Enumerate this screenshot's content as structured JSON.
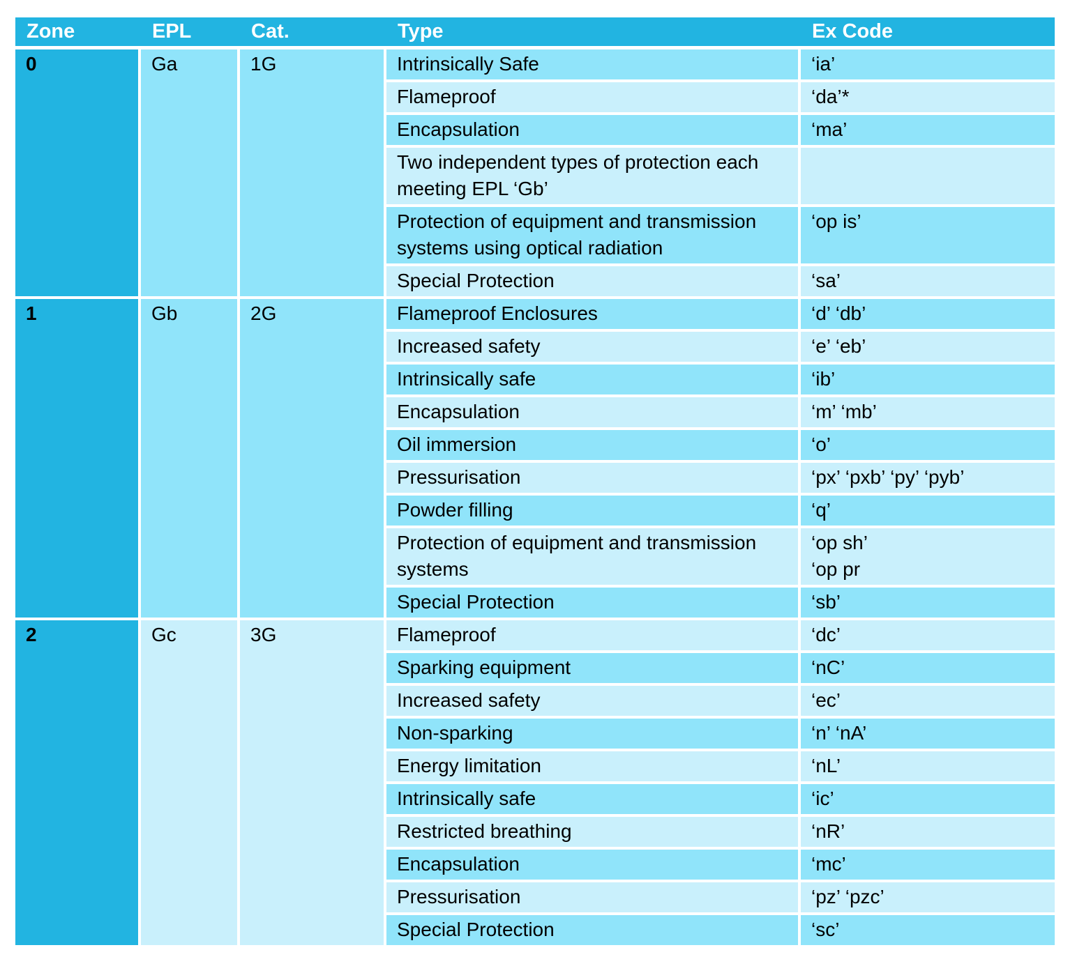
{
  "colors": {
    "header_bg": "#22b4e1",
    "header_text": "#ffffff",
    "row_medium": "#90e4fa",
    "row_light": "#c9f0fc",
    "grid": "#ffffff",
    "body_text": "#000000"
  },
  "table": {
    "headers": [
      "Zone",
      "EPL",
      "Cat.",
      "Type",
      "Ex Code"
    ],
    "groups": [
      {
        "zone": "0",
        "epl": "Ga",
        "cat": "1G",
        "group_shade": "medium",
        "rows": [
          {
            "type": "Intrinsically Safe",
            "code_lines": [
              "‘ia’"
            ],
            "shade": "medium"
          },
          {
            "type": "Flameproof",
            "code_lines": [
              "‘da’*"
            ],
            "shade": "light"
          },
          {
            "type": "Encapsulation",
            "code_lines": [
              "‘ma’"
            ],
            "shade": "medium"
          },
          {
            "type": "Two independent  types of  protection each meeting EPL ‘Gb’",
            "code_lines": [],
            "shade": "light"
          },
          {
            "type": "Protection of equipment and transmission systems using optical radiation",
            "code_lines": [
              "‘op is’"
            ],
            "shade": "medium"
          },
          {
            "type": "Special Protection",
            "code_lines": [
              "‘sa’"
            ],
            "shade": "light"
          }
        ]
      },
      {
        "zone": "1",
        "epl": "Gb",
        "cat": "2G",
        "group_shade": "medium",
        "rows": [
          {
            "type": "Flameproof Enclosures",
            "code_lines": [
              "‘d’ ‘db’"
            ],
            "shade": "medium"
          },
          {
            "type": "Increased safety",
            "code_lines": [
              "‘e’ ‘eb’"
            ],
            "shade": "light"
          },
          {
            "type": "Intrinsically safe",
            "code_lines": [
              "‘ib’"
            ],
            "shade": "medium"
          },
          {
            "type": "Encapsulation",
            "code_lines": [
              "‘m’ ‘mb’"
            ],
            "shade": "light"
          },
          {
            "type": "Oil immersion",
            "code_lines": [
              "‘o’"
            ],
            "shade": "medium"
          },
          {
            "type": "Pressurisation",
            "code_lines": [
              "‘px’ ‘pxb’ ‘py’ ‘pyb’"
            ],
            "shade": "light"
          },
          {
            "type": "Powder filling",
            "code_lines": [
              "‘q’"
            ],
            "shade": "medium"
          },
          {
            "type": "Protection of equipment and transmission systems",
            "code_lines": [
              "‘op sh’",
              "‘op pr"
            ],
            "shade": "light"
          },
          {
            "type": "Special Protection",
            "code_lines": [
              "‘sb’"
            ],
            "shade": "medium"
          }
        ]
      },
      {
        "zone": "2",
        "epl": "Gc",
        "cat": "3G",
        "group_shade": "light",
        "rows": [
          {
            "type": "Flameproof",
            "code_lines": [
              "‘dc’"
            ],
            "shade": "light"
          },
          {
            "type": "Sparking equipment",
            "code_lines": [
              "‘nC’"
            ],
            "shade": "medium"
          },
          {
            "type": "Increased safety",
            "code_lines": [
              "‘ec’"
            ],
            "shade": "light"
          },
          {
            "type": "Non-sparking",
            "code_lines": [
              "‘n’ ‘nA’"
            ],
            "shade": "medium"
          },
          {
            "type": "Energy limitation",
            "code_lines": [
              "‘nL’"
            ],
            "shade": "light"
          },
          {
            "type": "Intrinsically safe",
            "code_lines": [
              "‘ic’"
            ],
            "shade": "medium"
          },
          {
            "type": "Restricted breathing",
            "code_lines": [
              "‘nR’"
            ],
            "shade": "light"
          },
          {
            "type": "Encapsulation",
            "code_lines": [
              "‘mc’"
            ],
            "shade": "medium"
          },
          {
            "type": "Pressurisation",
            "code_lines": [
              "‘pz’ ‘pzc’"
            ],
            "shade": "light"
          },
          {
            "type": "Special Protection",
            "code_lines": [
              "‘sc’"
            ],
            "shade": "medium"
          }
        ]
      }
    ]
  }
}
